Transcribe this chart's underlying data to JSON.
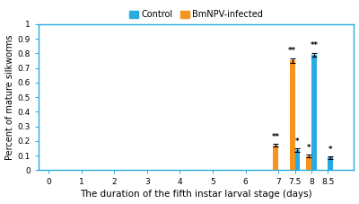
{
  "x_positions": [
    7,
    7.5,
    8,
    8.5
  ],
  "control_values": [
    0,
    0.135,
    0.79,
    0.085
  ],
  "control_errors": [
    0,
    0.012,
    0.015,
    0.01
  ],
  "infected_values": [
    0.17,
    0.75,
    0.095,
    0
  ],
  "infected_errors": [
    0.01,
    0.018,
    0.01,
    0
  ],
  "control_color": "#29ABE2",
  "infected_color": "#F7941D",
  "bar_width": 0.16,
  "xlabel": "The duration of the fifth instar larval stage (days)",
  "ylabel": "Percent of mature silkworms",
  "xlim": [
    -0.3,
    9.3
  ],
  "ylim": [
    0,
    1.0
  ],
  "yticks": [
    0,
    0.1,
    0.2,
    0.3,
    0.4,
    0.5,
    0.6,
    0.7,
    0.8,
    0.9,
    1
  ],
  "xticks": [
    0,
    1,
    2,
    3,
    4,
    5,
    6,
    7,
    7.5,
    8,
    8.5
  ],
  "legend_control": "Control",
  "legend_infected": "BmNPV-infected",
  "sig_infected": [
    "**",
    "**",
    "*",
    ""
  ],
  "sig_control": [
    "",
    "*",
    "**",
    "*"
  ],
  "background_color": "#ffffff",
  "axis_color": "#29ABE2"
}
